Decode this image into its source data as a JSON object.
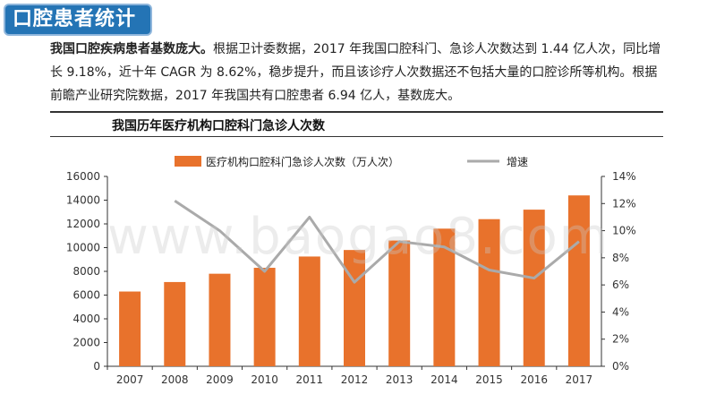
{
  "page": {
    "badge_title": "口腔患者统计",
    "intro_bold": "我国口腔疾病患者基数庞大。",
    "intro_text": "根据卫计委数据，2017 年我国口腔科门、急诊人次数达到 1.44 亿人次，同比增长 9.18%，近十年 CAGR 为 8.62%，稳步提升，而且该诊疗人次数据还不包括大量的口腔诊所等机构。根据前瞻产业研究院数据，2017 年我国共有口腔患者 6.94 亿人，基数庞大。",
    "chart_title": "我国历年医疗机构口腔科门急诊人次数",
    "watermark": "www.baogao8.com"
  },
  "colors": {
    "badge": "#2474b5",
    "bar": "#e8722c",
    "line": "#aaaaaa"
  },
  "chart_data": {
    "type": "bar",
    "categories": [
      "2007",
      "2008",
      "2009",
      "2010",
      "2011",
      "2012",
      "2013",
      "2014",
      "2015",
      "2016",
      "2017"
    ],
    "series": [
      {
        "name": "医疗机构口腔科门急诊人次数（万人次）",
        "type": "bar",
        "axis": "left",
        "values": [
          6300,
          7100,
          7800,
          8300,
          9250,
          9800,
          10600,
          11600,
          12400,
          13200,
          14400
        ]
      },
      {
        "name": "增速",
        "type": "line",
        "axis": "right",
        "values": [
          null,
          12.2,
          10.0,
          7.0,
          11.0,
          6.2,
          9.2,
          8.8,
          7.1,
          6.5,
          9.2
        ]
      }
    ],
    "y_left": {
      "ylim": [
        0,
        16000
      ],
      "ticks": [
        "0",
        "2000",
        "4000",
        "6000",
        "8000",
        "10000",
        "12000",
        "14000",
        "16000"
      ]
    },
    "y_right": {
      "ylim": [
        0,
        14
      ],
      "ticks": [
        "0%",
        "2%",
        "4%",
        "6%",
        "8%",
        "10%",
        "12%",
        "14%"
      ]
    },
    "legend_position": "top",
    "grid": false
  }
}
